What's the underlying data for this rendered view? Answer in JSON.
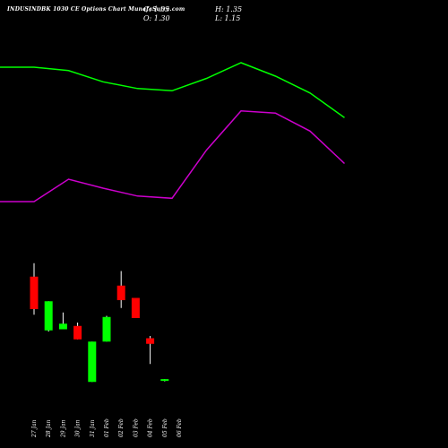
{
  "header": {
    "title": "INDUSINDBK 1030  CE Options  Chart MunafaSutra.com",
    "close": "C: 1.35",
    "open": "O: 1.30",
    "high": "H: 1.35",
    "low": "L: 1.15"
  },
  "colors": {
    "background": "#000000",
    "up": "#00ff00",
    "down": "#ff0000",
    "upper_band": "#00ff00",
    "lower_band": "#cc00cc",
    "wick": "#ffffff",
    "text": "#ffffff"
  },
  "chart_data": {
    "type": "candlestick",
    "categories": [
      "27 Jan",
      "28 Jan",
      "29 Jan",
      "30 Jan",
      "31 Jan",
      "01 Feb",
      "02 Feb",
      "03 Feb",
      "04 Feb",
      "05 Feb",
      "06 Feb"
    ],
    "candles": [
      {
        "date": "27 Jan",
        "open": 10.5,
        "high": 11.7,
        "low": 7.1,
        "close": 7.6,
        "direction": "down"
      },
      {
        "date": "28 Jan",
        "open": 5.7,
        "high": 8.3,
        "low": 5.6,
        "close": 8.3,
        "direction": "up"
      },
      {
        "date": "29 Jan",
        "open": 5.8,
        "high": 7.3,
        "low": 5.8,
        "close": 6.3,
        "direction": "up"
      },
      {
        "date": "30 Jan",
        "open": 6.1,
        "high": 6.4,
        "low": 4.9,
        "close": 4.9,
        "direction": "down"
      },
      {
        "date": "31 Jan",
        "open": 1.1,
        "high": 4.7,
        "low": 1.1,
        "close": 4.7,
        "direction": "up"
      },
      {
        "date": "01 Feb",
        "open": 4.7,
        "high": 7.0,
        "low": 4.7,
        "close": 6.9,
        "direction": "up"
      },
      {
        "date": "02 Feb",
        "open": 9.7,
        "high": 11.0,
        "low": 7.7,
        "close": 8.4,
        "direction": "down"
      },
      {
        "date": "03 Feb",
        "open": 8.6,
        "high": 8.6,
        "low": 6.8,
        "close": 6.8,
        "direction": "down"
      },
      {
        "date": "04 Feb",
        "open": 5.0,
        "high": 5.2,
        "low": 2.7,
        "close": 4.5,
        "direction": "down"
      },
      {
        "date": "05 Feb",
        "open": 1.3,
        "high": 1.35,
        "low": 1.15,
        "close": 1.35,
        "direction": "up"
      }
    ],
    "upper_band": [
      {
        "date": "27 Jan",
        "value": 29.2
      },
      {
        "date": "28 Jan",
        "value": 29.2
      },
      {
        "date": "29 Jan",
        "value": 28.9
      },
      {
        "date": "30 Jan",
        "value": 27.9
      },
      {
        "date": "31 Jan",
        "value": 27.3
      },
      {
        "date": "01 Feb",
        "value": 27.1
      },
      {
        "date": "02 Feb",
        "value": 28.2
      },
      {
        "date": "03 Feb",
        "value": 29.6
      },
      {
        "date": "04 Feb",
        "value": 28.4
      },
      {
        "date": "05 Feb",
        "value": 26.9
      },
      {
        "date": "06 Feb",
        "value": 24.7
      }
    ],
    "lower_band": [
      {
        "date": "27 Jan",
        "value": 17.2
      },
      {
        "date": "28 Jan",
        "value": 17.2
      },
      {
        "date": "29 Jan",
        "value": 19.2
      },
      {
        "date": "30 Jan",
        "value": 18.4
      },
      {
        "date": "31 Jan",
        "value": 17.7
      },
      {
        "date": "01 Feb",
        "value": 17.5
      },
      {
        "date": "02 Feb",
        "value": 21.8
      },
      {
        "date": "03 Feb",
        "value": 25.3
      },
      {
        "date": "04 Feb",
        "value": 25.1
      },
      {
        "date": "05 Feb",
        "value": 23.5
      },
      {
        "date": "06 Feb",
        "value": 20.6
      }
    ],
    "title": "INDUSINDBK 1030  CE Options  Chart MunafaSutra.com",
    "xlabel": "",
    "ylabel": "",
    "ylim": [
      0,
      32
    ],
    "grid": false
  }
}
